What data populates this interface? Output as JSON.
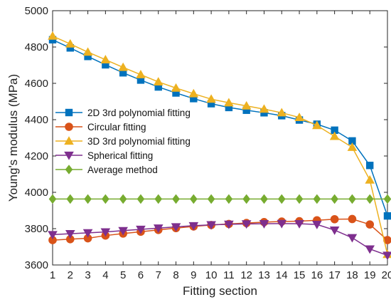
{
  "chart_data": {
    "type": "line",
    "title": "",
    "xlabel": "Fitting section",
    "ylabel": "Young's modulus (MPa)",
    "xlim": [
      1,
      20
    ],
    "ylim": [
      3600,
      5000
    ],
    "x_ticks": [
      1,
      2,
      3,
      4,
      5,
      6,
      7,
      8,
      9,
      10,
      11,
      12,
      13,
      14,
      15,
      16,
      17,
      18,
      19,
      20
    ],
    "y_ticks": [
      3600,
      3800,
      4000,
      4200,
      4400,
      4600,
      4800,
      5000
    ],
    "grid": false,
    "legend_position": "left",
    "x": [
      1,
      2,
      3,
      4,
      5,
      6,
      7,
      8,
      9,
      10,
      11,
      12,
      13,
      14,
      15,
      16,
      17,
      18,
      19,
      20
    ],
    "series": [
      {
        "name": "2D 3rd polynomial fitting",
        "color": "#0072BD",
        "marker": "square",
        "values": [
          4840,
          4795,
          4748,
          4702,
          4658,
          4618,
          4580,
          4547,
          4516,
          4488,
          4467,
          4452,
          4438,
          4422,
          4398,
          4375,
          4342,
          4283,
          4148,
          3870
        ]
      },
      {
        "name": "Circular fitting",
        "color": "#D95319",
        "marker": "circle",
        "values": [
          3737,
          3742,
          3747,
          3762,
          3773,
          3783,
          3793,
          3803,
          3812,
          3820,
          3826,
          3831,
          3836,
          3839,
          3841,
          3846,
          3852,
          3853,
          3823,
          3737
        ]
      },
      {
        "name": "3D 3rd polynomial fitting",
        "color": "#EDB120",
        "marker": "triangle-up",
        "values": [
          4860,
          4817,
          4772,
          4730,
          4688,
          4648,
          4608,
          4574,
          4543,
          4513,
          4493,
          4476,
          4458,
          4438,
          4412,
          4368,
          4308,
          4248,
          4068,
          3658
        ]
      },
      {
        "name": "Spherical fitting",
        "color": "#7E2F8E",
        "marker": "triangle-down",
        "values": [
          3767,
          3772,
          3777,
          3782,
          3789,
          3796,
          3803,
          3810,
          3816,
          3821,
          3824,
          3826,
          3827,
          3828,
          3827,
          3823,
          3792,
          3750,
          3688,
          3653
        ]
      },
      {
        "name": "Average method",
        "color": "#77AC30",
        "marker": "diamond",
        "values": [
          3963,
          3963,
          3963,
          3963,
          3963,
          3963,
          3963,
          3963,
          3963,
          3963,
          3963,
          3963,
          3963,
          3963,
          3963,
          3963,
          3963,
          3963,
          3963,
          3963
        ]
      }
    ]
  }
}
